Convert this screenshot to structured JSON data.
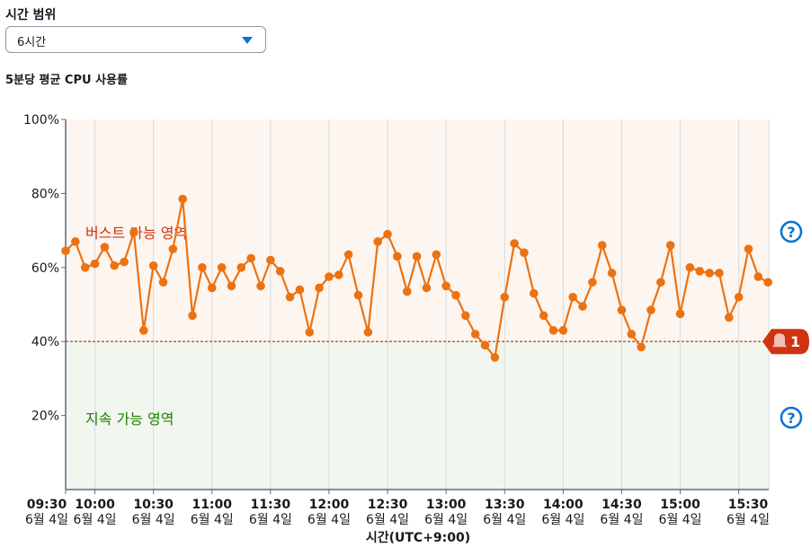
{
  "time_range": {
    "label": "시간 범위",
    "selected": "6시간"
  },
  "chart_title": "5분당 평균 CPU 사용률",
  "chart_data": {
    "type": "line",
    "title": "5분당 평균 CPU 사용률",
    "xlabel": "시간(UTC+9:00)",
    "ylabel": "",
    "ylim": [
      0,
      100
    ],
    "y_ticks": [
      "20%",
      "40%",
      "60%",
      "80%",
      "100%"
    ],
    "x_ticks": [
      {
        "time": "09:30",
        "date": "6월 4일"
      },
      {
        "time": "10:00",
        "date": "6월 4일"
      },
      {
        "time": "10:30",
        "date": "6월 4일"
      },
      {
        "time": "11:00",
        "date": "6월 4일"
      },
      {
        "time": "11:30",
        "date": "6월 4일"
      },
      {
        "time": "12:00",
        "date": "6월 4일"
      },
      {
        "time": "12:30",
        "date": "6월 4일"
      },
      {
        "time": "13:00",
        "date": "6월 4일"
      },
      {
        "time": "13:30",
        "date": "6월 4일"
      },
      {
        "time": "14:00",
        "date": "6월 4일"
      },
      {
        "time": "14:30",
        "date": "6월 4일"
      },
      {
        "time": "15:00",
        "date": "6월 4일"
      },
      {
        "time": "15:30",
        "date": "6월 4일"
      }
    ],
    "x_start": "09:30",
    "x_interval_minutes": 5,
    "series": [
      {
        "color": "#ec7211",
        "values": [
          64.5,
          67,
          60,
          61,
          65.5,
          60.5,
          61.5,
          69.5,
          43,
          60.5,
          56,
          65,
          78.5,
          47,
          60,
          54.5,
          60,
          55,
          60,
          62.5,
          55,
          62,
          59,
          52,
          54,
          42.5,
          54.5,
          57.5,
          58,
          63.5,
          52.5,
          42.5,
          67,
          69,
          63,
          53.5,
          63,
          54.5,
          63.5,
          55,
          52.5,
          47,
          42,
          39,
          35.7,
          52,
          66.5,
          64,
          53,
          47,
          43,
          43,
          52,
          49.5,
          56,
          66,
          58.5,
          48.5,
          42,
          38.5,
          48.5,
          56,
          66,
          47.5,
          60,
          59,
          58.5,
          58.5,
          46.5,
          52,
          65,
          57.5,
          56
        ]
      }
    ],
    "threshold": {
      "value": 40,
      "badge": "1",
      "color": "#d13212"
    },
    "zones": [
      {
        "label": "버스트 가능 영역",
        "from": 40,
        "to": 100,
        "color": "#d13212"
      },
      {
        "label": "지속 가능 영역",
        "from": 0,
        "to": 40,
        "color": "#1d8102"
      }
    ],
    "grid": true
  }
}
